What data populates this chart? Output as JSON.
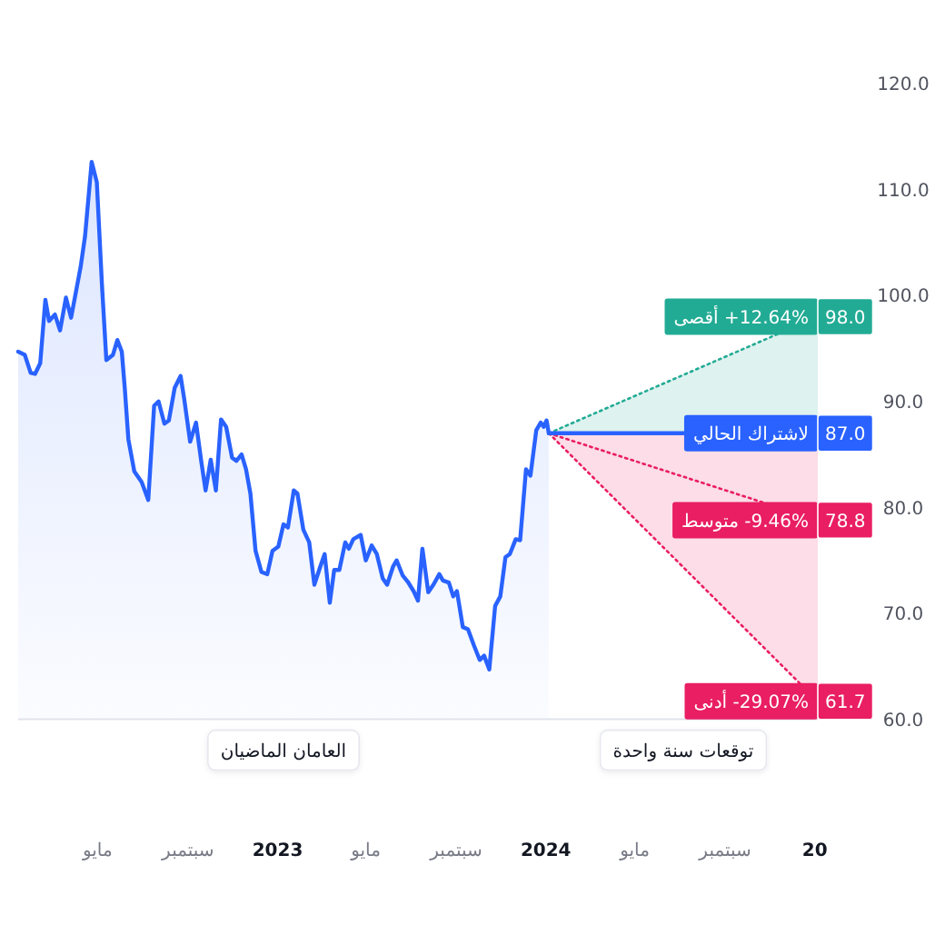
{
  "chart_data": {
    "type": "area",
    "x": [
      "2022-01-13",
      "2022-01-22",
      "2022-01-30",
      "2022-02-05",
      "2022-02-12",
      "2022-02-19",
      "2022-02-24",
      "2022-03-04",
      "2022-03-11",
      "2022-03-19",
      "2022-03-26",
      "2022-04-08",
      "2022-04-14",
      "2022-04-23",
      "2022-04-30",
      "2022-05-07",
      "2022-05-13",
      "2022-05-22",
      "2022-05-28",
      "2022-06-03",
      "2022-06-07",
      "2022-06-12",
      "2022-06-20",
      "2022-06-30",
      "2022-07-09",
      "2022-07-17",
      "2022-07-23",
      "2022-07-31",
      "2022-08-06",
      "2022-08-14",
      "2022-08-22",
      "2022-08-27",
      "2022-09-04",
      "2022-09-12",
      "2022-09-19",
      "2022-09-25",
      "2022-10-02",
      "2022-10-09",
      "2022-10-16",
      "2022-10-23",
      "2022-10-31",
      "2022-11-06",
      "2022-11-13",
      "2022-11-19",
      "2022-11-25",
      "2022-12-02",
      "2022-12-10",
      "2022-12-18",
      "2022-12-25",
      "2023-01-02",
      "2023-01-09",
      "2023-01-15",
      "2023-01-23",
      "2023-01-28",
      "2023-02-05",
      "2023-02-13",
      "2023-02-20",
      "2023-02-28",
      "2023-03-06",
      "2023-03-13",
      "2023-03-19",
      "2023-03-26",
      "2023-04-03",
      "2023-04-08",
      "2023-04-14",
      "2023-04-24",
      "2023-05-01",
      "2023-05-09",
      "2023-05-16",
      "2023-05-24",
      "2023-05-30",
      "2023-06-07",
      "2023-06-12",
      "2023-06-20",
      "2023-06-27",
      "2023-07-05",
      "2023-07-11",
      "2023-07-17",
      "2023-07-25",
      "2023-08-01",
      "2023-08-09",
      "2023-08-14",
      "2023-08-22",
      "2023-08-28",
      "2023-09-02",
      "2023-09-10",
      "2023-09-17",
      "2023-09-25",
      "2023-10-03",
      "2023-10-09",
      "2023-10-16",
      "2023-10-24",
      "2023-10-31",
      "2023-11-07",
      "2023-11-13",
      "2023-11-21",
      "2023-11-27",
      "2023-12-05",
      "2023-12-11",
      "2023-12-19",
      "2023-12-25",
      "2023-12-29",
      "2024-01-02",
      "2024-01-05"
    ],
    "series": [
      {
        "color": "#2962ff",
        "values": [
          94.7,
          94.4,
          92.7,
          92.6,
          93.6,
          99.6,
          97.6,
          98.2,
          96.7,
          99.8,
          97.9,
          102.7,
          105.6,
          112.6,
          110.7,
          101.0,
          93.9,
          94.4,
          95.8,
          94.7,
          91.3,
          86.4,
          83.4,
          82.4,
          80.7,
          89.6,
          90.0,
          87.9,
          88.2,
          91.3,
          92.4,
          90.2,
          86.2,
          88.0,
          84.4,
          81.6,
          84.5,
          81.6,
          88.3,
          87.6,
          84.7,
          84.4,
          85.0,
          83.6,
          81.3,
          75.9,
          73.9,
          73.7,
          75.9,
          76.3,
          78.4,
          78.1,
          81.6,
          81.3,
          77.9,
          76.7,
          72.7,
          74.4,
          75.6,
          71.0,
          74.1,
          74.1,
          76.7,
          76.1,
          77.0,
          77.4,
          75.0,
          76.4,
          75.6,
          73.3,
          72.7,
          74.4,
          75.0,
          73.6,
          73.0,
          72.1,
          71.2,
          76.1,
          72.0,
          72.7,
          73.7,
          73.1,
          72.9,
          71.6,
          72.1,
          68.7,
          68.5,
          67.0,
          65.6,
          66.0,
          64.7,
          70.7,
          71.6,
          75.3,
          75.6,
          77.0,
          76.9,
          83.6,
          83.0,
          87.3,
          88.0,
          87.6,
          88.2,
          87.0
        ]
      },
      {
        "type": "line",
        "x": [
          "2024-01-05",
          "2025-01-05"
        ],
        "color": "#22ab94",
        "line_style": "dotted",
        "values": [
          87.0,
          98.0
        ],
        "lower": [
          87.0,
          87.0
        ],
        "upper": [
          87.0,
          98.0
        ],
        "value_labels": [
          null,
          "98.0"
        ]
      },
      {
        "type": "line",
        "x": [
          "2024-01-05",
          "2025-01-05"
        ],
        "color": "#e91e63",
        "line_style": "dotted",
        "values": [
          87.0,
          61.7
        ],
        "lower": [
          87.0,
          61.7
        ],
        "upper": [
          87.0,
          87.0
        ],
        "value_labels": [
          null,
          "61.7"
        ]
      },
      {
        "type": "line",
        "x": [
          "2024-01-05",
          "2025-01-05"
        ],
        "color": "#e91e63",
        "line_style": "dotted",
        "values": [
          87.0,
          78.8
        ],
        "value_labels": [
          null,
          "78.8"
        ]
      },
      {
        "type": "line",
        "x": [
          "2024-01-05",
          "2025-01-05"
        ],
        "color": "#2962ff",
        "line_style": "solid",
        "values": [
          87.0,
          87.0
        ],
        "value_labels": [
          null,
          "87.0"
        ]
      }
    ],
    "xlim": [
      "2022-01-13",
      "2025-01-05"
    ],
    "xticks": [
      {
        "value": "2022-05-01",
        "label": "مايو"
      },
      {
        "value": "2022-09-01",
        "label": "سبتمبر"
      },
      {
        "value": "2023-01-01",
        "label": "2023"
      },
      {
        "value": "2023-05-01",
        "label": "مايو"
      },
      {
        "value": "2023-09-01",
        "label": "سبتمبر"
      },
      {
        "value": "2024-01-01",
        "label": "2024"
      },
      {
        "value": "2024-05-01",
        "label": "مايو"
      },
      {
        "value": "2024-09-01",
        "label": "سبتمبر"
      },
      {
        "value": "2025-01-01",
        "label": "20"
      }
    ],
    "ylim": [
      60,
      120
    ],
    "yticks": [
      {
        "value": 60,
        "label": "60.0"
      },
      {
        "value": 70,
        "label": "70.0"
      },
      {
        "value": 80,
        "label": "80.0"
      },
      {
        "value": 90,
        "label": "90.0"
      },
      {
        "value": 100,
        "label": "100.0"
      },
      {
        "value": 110,
        "label": "110.0"
      },
      {
        "value": 120,
        "label": "120.0"
      }
    ],
    "annotations": [
      "العامان الماضيان",
      "توقعات سنة واحدة",
      {
        "text": "+12.64% أقصى",
        "x": "2025-01-05",
        "y": 98.0
      },
      {
        "text": "لاشتراك الحالي",
        "x": "2025-01-05",
        "y": 87.0
      },
      {
        "text": "-9.46% متوسط",
        "x": "2025-01-05",
        "y": 78.8
      },
      {
        "text": "-29.07% أدنى",
        "x": "2025-01-05",
        "y": 61.7
      }
    ]
  }
}
